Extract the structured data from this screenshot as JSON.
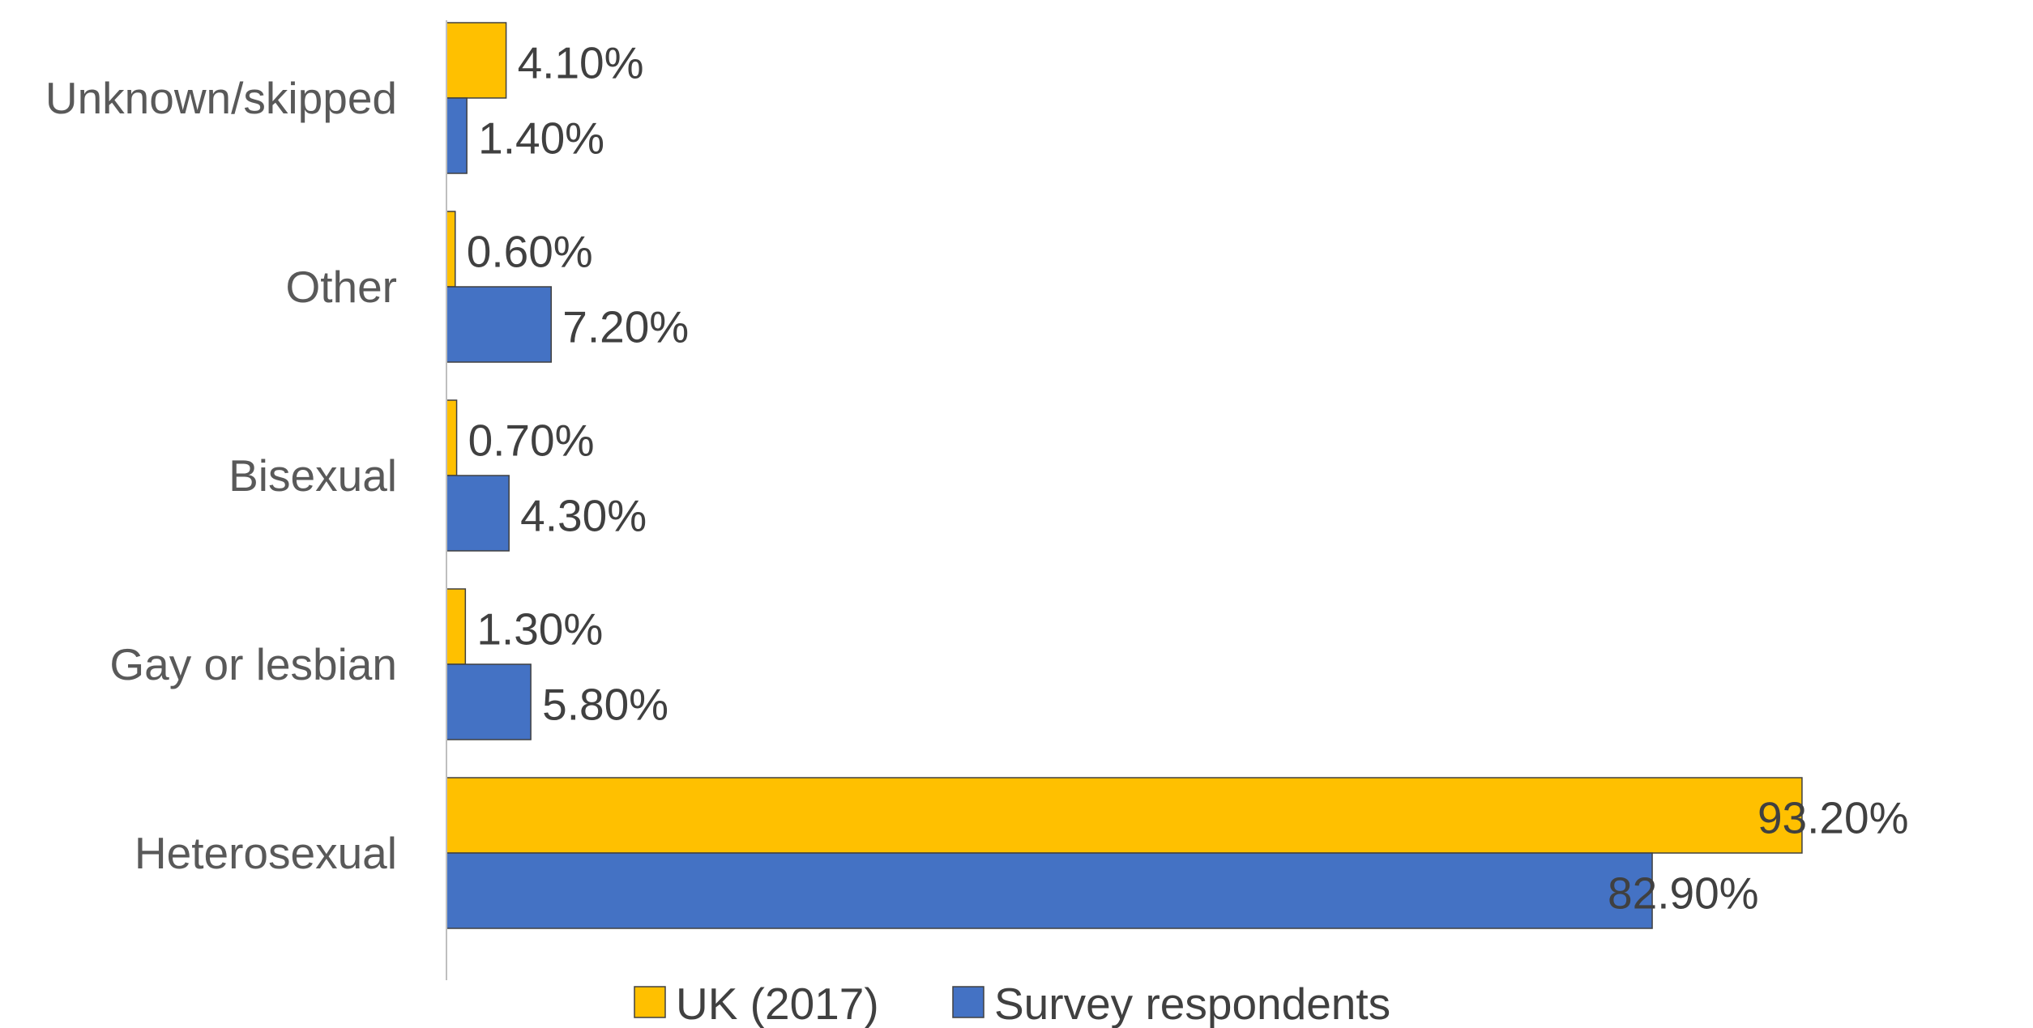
{
  "chart_data": {
    "type": "bar",
    "orientation": "horizontal",
    "categories": [
      "Unknown/skipped",
      "Other",
      "Bisexual",
      "Gay or lesbian",
      "Heterosexual"
    ],
    "series": [
      {
        "name": "UK (2017)",
        "color": "#FFC000",
        "values": [
          4.1,
          0.6,
          0.7,
          1.3,
          93.2
        ],
        "labels": [
          "4.10%",
          "0.60%",
          "0.70%",
          "1.30%",
          "93.20%"
        ]
      },
      {
        "name": "Survey respondents",
        "color": "#4472C4",
        "values": [
          1.4,
          7.2,
          4.3,
          5.8,
          82.9
        ],
        "labels": [
          "1.40%",
          "7.20%",
          "4.30%",
          "5.80%",
          "82.90%"
        ]
      }
    ],
    "title": "",
    "xlabel": "",
    "ylabel": "",
    "xlim": [
      0,
      100
    ],
    "grid": false,
    "legend": "bottom",
    "axis_color": "#BFBFBF",
    "bar_outline": "#404040"
  }
}
